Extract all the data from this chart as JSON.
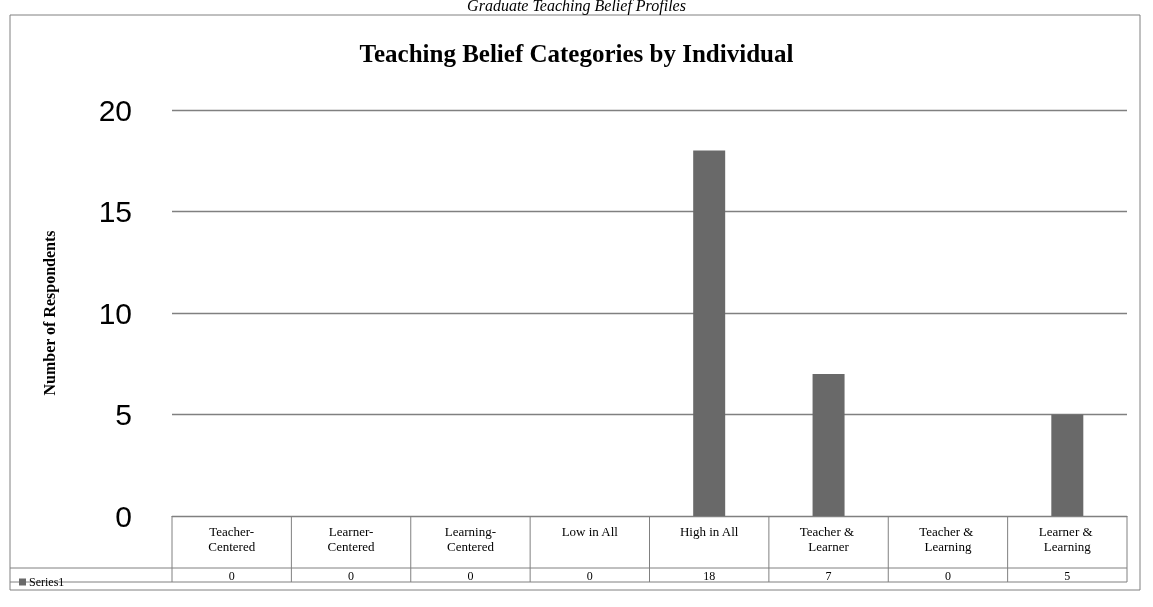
{
  "chart_data": {
    "type": "bar",
    "title": "Teaching Belief Categories by Individual",
    "subtitle": "Graduate Teaching Belief Profiles",
    "ylabel": "Number of Respondents",
    "categories": [
      "Teacher-Centered",
      "Learner-Centered",
      "Learning-Centered",
      "Low in All",
      "High in All",
      "Teacher & Learner",
      "Teacher & Learning",
      "Learner & Learning"
    ],
    "series": [
      {
        "name": "Series1",
        "color": "#696969",
        "values": [
          0,
          0,
          0,
          0,
          18,
          7,
          0,
          5
        ]
      }
    ],
    "ylim": [
      0,
      20
    ],
    "yticks": [
      0,
      5,
      10,
      15,
      20
    ],
    "grid": "y",
    "legend": "bottom left",
    "data_labels": true
  }
}
